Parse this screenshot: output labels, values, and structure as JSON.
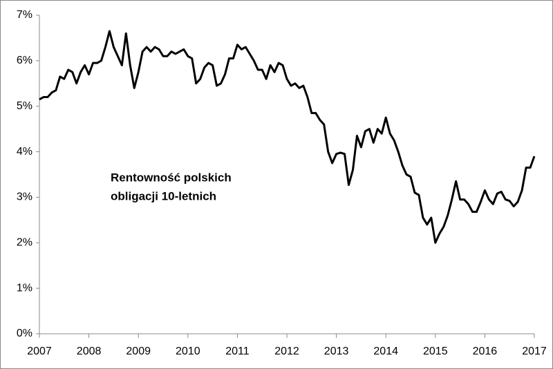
{
  "chart_data": {
    "type": "line",
    "annotation": [
      "Rentowność polskich",
      "obligacji 10-letnich"
    ],
    "categories": [
      "2007",
      null,
      null,
      null,
      null,
      null,
      null,
      null,
      null,
      null,
      null,
      null,
      "2008",
      null,
      null,
      null,
      null,
      null,
      null,
      null,
      null,
      null,
      null,
      null,
      "2009",
      null,
      null,
      null,
      null,
      null,
      null,
      null,
      null,
      null,
      null,
      null,
      "2010",
      null,
      null,
      null,
      null,
      null,
      null,
      null,
      null,
      null,
      null,
      null,
      "2011",
      null,
      null,
      null,
      null,
      null,
      null,
      null,
      null,
      null,
      null,
      null,
      "2012",
      null,
      null,
      null,
      null,
      null,
      null,
      null,
      null,
      null,
      null,
      null,
      "2013",
      null,
      null,
      null,
      null,
      null,
      null,
      null,
      null,
      null,
      null,
      null,
      "2014",
      null,
      null,
      null,
      null,
      null,
      null,
      null,
      null,
      null,
      null,
      null,
      "2015",
      null,
      null,
      null,
      null,
      null,
      null,
      null,
      null,
      null,
      null,
      null,
      "2016",
      null,
      null,
      null,
      null,
      null,
      null,
      null,
      null,
      null,
      null,
      null,
      "2017"
    ],
    "series": [
      {
        "name": "Rentowność polskich obligacji 10-letnich",
        "color": "#000000",
        "values": [
          5.15,
          5.2,
          5.2,
          5.3,
          5.35,
          5.65,
          5.6,
          5.8,
          5.75,
          5.5,
          5.75,
          5.9,
          5.7,
          5.95,
          5.95,
          6.0,
          6.3,
          6.65,
          6.3,
          6.1,
          5.9,
          6.6,
          5.9,
          5.4,
          5.75,
          6.2,
          6.3,
          6.2,
          6.3,
          6.25,
          6.1,
          6.1,
          6.2,
          6.15,
          6.2,
          6.25,
          6.1,
          6.05,
          5.5,
          5.6,
          5.85,
          5.95,
          5.9,
          5.45,
          5.5,
          5.7,
          6.05,
          6.05,
          6.35,
          6.25,
          6.3,
          6.15,
          6.0,
          5.8,
          5.8,
          5.6,
          5.9,
          5.75,
          5.95,
          5.9,
          5.6,
          5.45,
          5.5,
          5.4,
          5.45,
          5.2,
          4.85,
          4.85,
          4.7,
          4.6,
          4.0,
          3.75,
          3.95,
          3.98,
          3.95,
          3.27,
          3.6,
          4.35,
          4.1,
          4.45,
          4.5,
          4.2,
          4.5,
          4.4,
          4.75,
          4.4,
          4.25,
          4.0,
          3.7,
          3.5,
          3.45,
          3.1,
          3.05,
          2.55,
          2.4,
          2.55,
          2.0,
          2.2,
          2.35,
          2.6,
          2.95,
          3.35,
          2.95,
          2.95,
          2.85,
          2.68,
          2.68,
          2.9,
          3.15,
          2.95,
          2.85,
          3.08,
          3.12,
          2.95,
          2.92,
          2.8,
          2.9,
          3.15,
          3.65,
          3.65,
          3.9
        ]
      }
    ],
    "ylim": [
      0,
      7
    ],
    "yticks": [
      {
        "value": 0,
        "label": "0%"
      },
      {
        "value": 1,
        "label": "1%"
      },
      {
        "value": 2,
        "label": "2%"
      },
      {
        "value": 3,
        "label": "3%"
      },
      {
        "value": 4,
        "label": "4%"
      },
      {
        "value": 5,
        "label": "5%"
      },
      {
        "value": 6,
        "label": "6%"
      },
      {
        "value": 7,
        "label": "7%"
      }
    ],
    "grid": false
  }
}
